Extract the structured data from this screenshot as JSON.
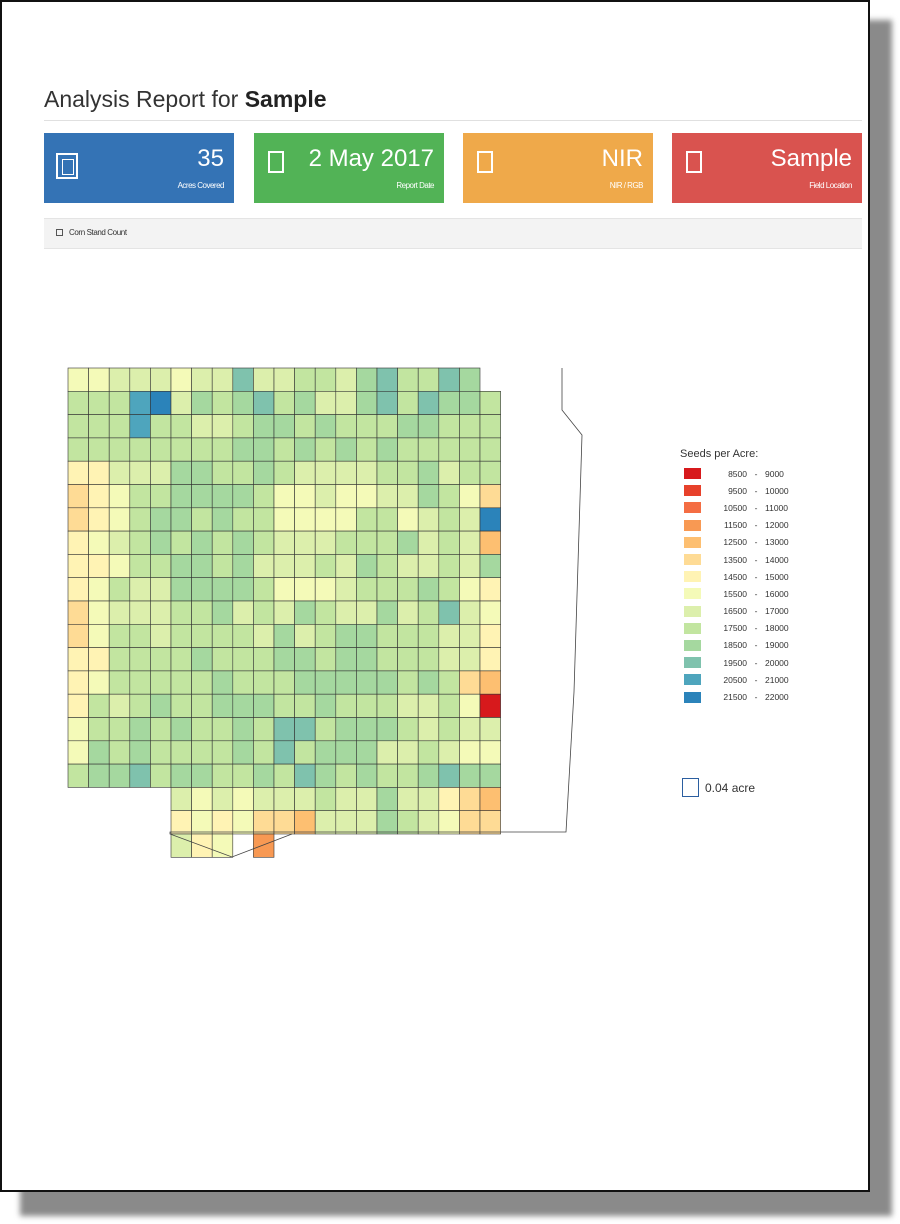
{
  "report": {
    "title_prefix": "Analysis Report for",
    "title_name": "Sample"
  },
  "cards": [
    {
      "value": "35",
      "label": "Acres Covered",
      "color": "#3473b5",
      "icon": "grid-icon"
    },
    {
      "value": "2 May 2017",
      "label": "Report Date",
      "color": "#52b356",
      "icon": "calendar-icon"
    },
    {
      "value": "NIR",
      "label": "NIR / RGB",
      "color": "#efa94a",
      "icon": "camera-icon"
    },
    {
      "value": "Sample",
      "label": "Field Location",
      "color": "#d9534f",
      "icon": "map-marker-icon"
    }
  ],
  "tabs": [
    {
      "label": "Corn Stand Count"
    }
  ],
  "legend": {
    "title": "Seeds per Acre:",
    "bins": [
      {
        "lo": "8500",
        "hi": "9000",
        "color": "#d7191c"
      },
      {
        "lo": "9500",
        "hi": "10000",
        "color": "#e7412b"
      },
      {
        "lo": "10500",
        "hi": "11000",
        "color": "#f46d43"
      },
      {
        "lo": "11500",
        "hi": "12000",
        "color": "#f89953"
      },
      {
        "lo": "12500",
        "hi": "13000",
        "color": "#fdbf71"
      },
      {
        "lo": "13500",
        "hi": "14000",
        "color": "#fedb95"
      },
      {
        "lo": "14500",
        "hi": "15000",
        "color": "#fff3b4"
      },
      {
        "lo": "15500",
        "hi": "16000",
        "color": "#f4fab8"
      },
      {
        "lo": "16500",
        "hi": "17000",
        "color": "#dcefac"
      },
      {
        "lo": "17500",
        "hi": "18000",
        "color": "#c2e5a0"
      },
      {
        "lo": "18500",
        "hi": "19000",
        "color": "#a5d89f"
      },
      {
        "lo": "19500",
        "hi": "20000",
        "color": "#7fc2ad"
      },
      {
        "lo": "20500",
        "hi": "21000",
        "color": "#4ea5bd"
      },
      {
        "lo": "21500",
        "hi": "22000",
        "color": "#2b83ba"
      }
    ]
  },
  "unit_label": "0.04 acre",
  "grid": {
    "rows": [
      "77888788B88998AB99BA8",
      "999CD8A9AB9A88AB9BAA9",
      "999C99889AA9A999AA999",
      "99999999AA9A9A9A99999",
      "66888AA99A9888899A899",
      "56799AAAA97787788A975",
      "5679AA9A997777997898D",
      "6789A9A9A9888999A8984",
      "66799AA9A88898A98898A",
      "67988AAAA97778999A976",
      "5788899A898A988A89B87",
      "5799899998A89AA999886",
      "669999A999AA9AA999886",
      "6799999A999AAAAA9A954",
      "6989A99AAA99A99988970",
      "799A9A99A9BB9AAA98988",
      "7A9A9999A9B9AAA889877",
      "9AAB9AA99A9BA9A99ABAA",
      "xxxxx8787888988A88654",
      "xxxxx6767554888A98755",
      "xxxxx867x3xxxxxxxxxxx"
    ],
    "code_to_bin": "0=8500,1=9500,2=10500,3=11500,4=12500,5=13500,6=14500,7=15500,8=16500,9=17500,A=18500,B=19500,C=20500,D=21500"
  }
}
